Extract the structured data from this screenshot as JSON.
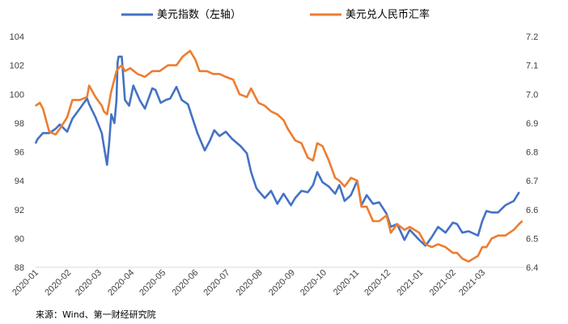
{
  "source_note": "来源：Wind、第一财经研究院",
  "chart_data": {
    "type": "line",
    "title": "",
    "xlabel": "",
    "y_left": {
      "label": "",
      "lim": [
        88,
        104
      ],
      "ticks": [
        88,
        90,
        92,
        94,
        96,
        98,
        100,
        102,
        104
      ]
    },
    "y_right": {
      "label": "",
      "lim": [
        6.4,
        7.2
      ],
      "ticks": [
        "6.4",
        "6.5",
        "6.6",
        "6.7",
        "6.8",
        "6.9",
        "7.0",
        "7.1",
        "7.2"
      ]
    },
    "x_range": [
      "2020-01-01",
      "2021-04-10"
    ],
    "x_ticks": [
      "2020-01",
      "2020-02",
      "2020-03",
      "2020-04",
      "2020-05",
      "2020-06",
      "2020-07",
      "2020-08",
      "2020-09",
      "2020-10",
      "2020-11",
      "2020-12",
      "2021-01",
      "2021-02",
      "2021-03"
    ],
    "grid": false,
    "legend": "top-center",
    "series": [
      {
        "name": "美元指数（左轴）",
        "axis": "left",
        "color": "#4472C4",
        "points": [
          [
            "2020-01-01",
            96.6
          ],
          [
            "2020-01-03",
            96.9
          ],
          [
            "2020-01-08",
            97.3
          ],
          [
            "2020-01-14",
            97.3
          ],
          [
            "2020-01-20",
            97.6
          ],
          [
            "2020-01-24",
            97.9
          ],
          [
            "2020-01-31",
            97.4
          ],
          [
            "2020-02-05",
            98.3
          ],
          [
            "2020-02-12",
            99.0
          ],
          [
            "2020-02-19",
            99.7
          ],
          [
            "2020-02-21",
            99.3
          ],
          [
            "2020-02-27",
            98.4
          ],
          [
            "2020-03-04",
            97.3
          ],
          [
            "2020-03-06",
            96.4
          ],
          [
            "2020-03-09",
            95.1
          ],
          [
            "2020-03-11",
            96.6
          ],
          [
            "2020-03-13",
            98.6
          ],
          [
            "2020-03-16",
            98.0
          ],
          [
            "2020-03-18",
            99.6
          ],
          [
            "2020-03-19",
            102.2
          ],
          [
            "2020-03-20",
            102.6
          ],
          [
            "2020-03-23",
            102.6
          ],
          [
            "2020-03-26",
            99.6
          ],
          [
            "2020-03-30",
            99.2
          ],
          [
            "2020-04-03",
            100.6
          ],
          [
            "2020-04-09",
            99.6
          ],
          [
            "2020-04-14",
            99.0
          ],
          [
            "2020-04-21",
            100.4
          ],
          [
            "2020-04-24",
            100.3
          ],
          [
            "2020-04-29",
            99.4
          ],
          [
            "2020-05-04",
            99.6
          ],
          [
            "2020-05-08",
            99.7
          ],
          [
            "2020-05-14",
            100.5
          ],
          [
            "2020-05-19",
            99.6
          ],
          [
            "2020-05-25",
            99.3
          ],
          [
            "2020-05-29",
            98.4
          ],
          [
            "2020-06-03",
            97.3
          ],
          [
            "2020-06-10",
            96.1
          ],
          [
            "2020-06-15",
            96.8
          ],
          [
            "2020-06-19",
            97.5
          ],
          [
            "2020-06-24",
            97.1
          ],
          [
            "2020-06-30",
            97.4
          ],
          [
            "2020-07-06",
            96.9
          ],
          [
            "2020-07-14",
            96.4
          ],
          [
            "2020-07-20",
            95.9
          ],
          [
            "2020-07-24",
            94.6
          ],
          [
            "2020-07-29",
            93.5
          ],
          [
            "2020-07-31",
            93.3
          ],
          [
            "2020-08-06",
            92.8
          ],
          [
            "2020-08-12",
            93.3
          ],
          [
            "2020-08-18",
            92.4
          ],
          [
            "2020-08-24",
            93.1
          ],
          [
            "2020-08-31",
            92.3
          ],
          [
            "2020-09-04",
            92.8
          ],
          [
            "2020-09-10",
            93.3
          ],
          [
            "2020-09-16",
            93.2
          ],
          [
            "2020-09-21",
            93.7
          ],
          [
            "2020-09-25",
            94.6
          ],
          [
            "2020-09-30",
            93.9
          ],
          [
            "2020-10-06",
            93.6
          ],
          [
            "2020-10-12",
            93.1
          ],
          [
            "2020-10-16",
            93.7
          ],
          [
            "2020-10-21",
            92.6
          ],
          [
            "2020-10-27",
            93.0
          ],
          [
            "2020-11-02",
            94.0
          ],
          [
            "2020-11-06",
            92.3
          ],
          [
            "2020-11-11",
            93.0
          ],
          [
            "2020-11-17",
            92.4
          ],
          [
            "2020-11-23",
            92.5
          ],
          [
            "2020-11-30",
            91.7
          ],
          [
            "2020-12-04",
            90.8
          ],
          [
            "2020-12-10",
            91.0
          ],
          [
            "2020-12-17",
            89.9
          ],
          [
            "2020-12-22",
            90.6
          ],
          [
            "2020-12-31",
            89.9
          ],
          [
            "2021-01-06",
            89.5
          ],
          [
            "2021-01-12",
            90.1
          ],
          [
            "2021-01-18",
            90.8
          ],
          [
            "2021-01-25",
            90.4
          ],
          [
            "2021-02-01",
            91.1
          ],
          [
            "2021-02-05",
            91.0
          ],
          [
            "2021-02-10",
            90.4
          ],
          [
            "2021-02-16",
            90.5
          ],
          [
            "2021-02-25",
            90.2
          ],
          [
            "2021-03-01",
            91.2
          ],
          [
            "2021-03-05",
            91.9
          ],
          [
            "2021-03-10",
            91.8
          ],
          [
            "2021-03-16",
            91.8
          ],
          [
            "2021-03-23",
            92.3
          ],
          [
            "2021-03-31",
            92.6
          ],
          [
            "2021-04-05",
            93.2
          ]
        ]
      },
      {
        "name": "美元兑人民币汇率",
        "axis": "right",
        "color": "#ED7D31",
        "points": [
          [
            "2020-01-01",
            6.96
          ],
          [
            "2020-01-05",
            6.97
          ],
          [
            "2020-01-08",
            6.95
          ],
          [
            "2020-01-14",
            6.87
          ],
          [
            "2020-01-20",
            6.86
          ],
          [
            "2020-01-24",
            6.88
          ],
          [
            "2020-01-31",
            6.92
          ],
          [
            "2020-02-05",
            6.98
          ],
          [
            "2020-02-12",
            6.98
          ],
          [
            "2020-02-19",
            6.99
          ],
          [
            "2020-02-21",
            7.03
          ],
          [
            "2020-02-27",
            6.99
          ],
          [
            "2020-03-04",
            6.96
          ],
          [
            "2020-03-06",
            6.94
          ],
          [
            "2020-03-09",
            6.93
          ],
          [
            "2020-03-13",
            7.01
          ],
          [
            "2020-03-18",
            7.08
          ],
          [
            "2020-03-20",
            7.09
          ],
          [
            "2020-03-23",
            7.1
          ],
          [
            "2020-03-26",
            7.08
          ],
          [
            "2020-03-31",
            7.09
          ],
          [
            "2020-04-07",
            7.07
          ],
          [
            "2020-04-14",
            7.06
          ],
          [
            "2020-04-21",
            7.08
          ],
          [
            "2020-04-28",
            7.08
          ],
          [
            "2020-05-06",
            7.1
          ],
          [
            "2020-05-14",
            7.1
          ],
          [
            "2020-05-20",
            7.13
          ],
          [
            "2020-05-27",
            7.15
          ],
          [
            "2020-06-01",
            7.12
          ],
          [
            "2020-06-05",
            7.08
          ],
          [
            "2020-06-12",
            7.08
          ],
          [
            "2020-06-18",
            7.07
          ],
          [
            "2020-06-24",
            7.07
          ],
          [
            "2020-06-30",
            7.06
          ],
          [
            "2020-07-07",
            7.05
          ],
          [
            "2020-07-13",
            7.0
          ],
          [
            "2020-07-20",
            6.99
          ],
          [
            "2020-07-24",
            7.02
          ],
          [
            "2020-07-31",
            6.97
          ],
          [
            "2020-08-06",
            6.96
          ],
          [
            "2020-08-12",
            6.94
          ],
          [
            "2020-08-18",
            6.93
          ],
          [
            "2020-08-24",
            6.91
          ],
          [
            "2020-08-28",
            6.88
          ],
          [
            "2020-09-04",
            6.84
          ],
          [
            "2020-09-10",
            6.83
          ],
          [
            "2020-09-16",
            6.78
          ],
          [
            "2020-09-21",
            6.77
          ],
          [
            "2020-09-25",
            6.83
          ],
          [
            "2020-09-30",
            6.82
          ],
          [
            "2020-10-06",
            6.77
          ],
          [
            "2020-10-12",
            6.71
          ],
          [
            "2020-10-16",
            6.7
          ],
          [
            "2020-10-21",
            6.68
          ],
          [
            "2020-10-27",
            6.71
          ],
          [
            "2020-11-02",
            6.7
          ],
          [
            "2020-11-06",
            6.61
          ],
          [
            "2020-11-11",
            6.61
          ],
          [
            "2020-11-17",
            6.56
          ],
          [
            "2020-11-23",
            6.56
          ],
          [
            "2020-11-30",
            6.58
          ],
          [
            "2020-12-04",
            6.52
          ],
          [
            "2020-12-10",
            6.55
          ],
          [
            "2020-12-17",
            6.53
          ],
          [
            "2020-12-22",
            6.54
          ],
          [
            "2020-12-31",
            6.52
          ],
          [
            "2021-01-06",
            6.48
          ],
          [
            "2021-01-12",
            6.47
          ],
          [
            "2021-01-18",
            6.48
          ],
          [
            "2021-01-25",
            6.47
          ],
          [
            "2021-02-01",
            6.45
          ],
          [
            "2021-02-05",
            6.45
          ],
          [
            "2021-02-10",
            6.43
          ],
          [
            "2021-02-16",
            6.42
          ],
          [
            "2021-02-25",
            6.44
          ],
          [
            "2021-03-01",
            6.47
          ],
          [
            "2021-03-05",
            6.47
          ],
          [
            "2021-03-10",
            6.5
          ],
          [
            "2021-03-16",
            6.51
          ],
          [
            "2021-03-23",
            6.51
          ],
          [
            "2021-03-31",
            6.53
          ],
          [
            "2021-04-05",
            6.55
          ],
          [
            "2021-04-08",
            6.56
          ]
        ]
      }
    ]
  }
}
